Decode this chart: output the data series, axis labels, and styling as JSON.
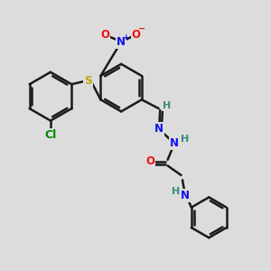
{
  "bg_color": "#dcdcdc",
  "bond_color": "#1a1a1a",
  "bond_width": 1.8,
  "atom_colors": {
    "C": "#1a1a1a",
    "H": "#3a8a7a",
    "N": "#1010ee",
    "O": "#ee1010",
    "S": "#c8a800",
    "Cl": "#008800",
    "Nplus": "#1010ee"
  },
  "font_size": 8.5,
  "fig_size": [
    3.0,
    3.0
  ],
  "dpi": 100
}
